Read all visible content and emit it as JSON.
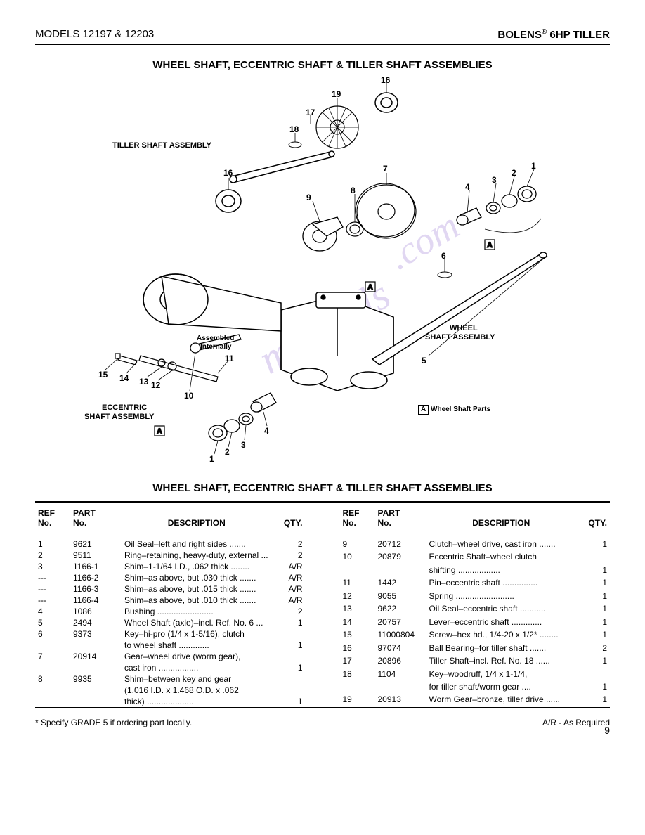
{
  "header": {
    "left": "MODELS 12197 & 12203",
    "brand": "BOLENS",
    "product": " 6HP TILLER"
  },
  "section_title": "WHEEL SHAFT, ECCENTRIC SHAFT & TILLER SHAFT ASSEMBLIES",
  "diagram_labels": {
    "tiller_shaft": "TILLER SHAFT ASSEMBLY",
    "wheel_shaft_1": "WHEEL",
    "wheel_shaft_2": "SHAFT ASSEMBLY",
    "eccentric_1": "ECCENTRIC",
    "eccentric_2": "SHAFT ASSEMBLY",
    "assembled_1": "Assembled",
    "assembled_2": "Internally",
    "legend_letter": "A",
    "legend_text": "Wheel Shaft Parts",
    "callouts": {
      "n1a": "1",
      "n2a": "2",
      "n3a": "3",
      "n4a": "4",
      "n1b": "1",
      "n2b": "2",
      "n3b": "3",
      "n4b": "4",
      "n5": "5",
      "n6": "6",
      "n7": "7",
      "n8": "8",
      "n9": "9",
      "n10": "10",
      "n11": "11",
      "n12": "12",
      "n13": "13",
      "n14": "14",
      "n15": "15",
      "n16a": "16",
      "n16b": "16",
      "n17": "17",
      "n18": "18",
      "n19": "19"
    }
  },
  "tables_title": "WHEEL SHAFT, ECCENTRIC SHAFT & TILLER SHAFT ASSEMBLIES",
  "table_headers": {
    "ref_1": "REF",
    "ref_2": "No.",
    "part_1": "PART",
    "part_2": "No.",
    "desc": "DESCRIPTION",
    "qty": "QTY."
  },
  "left_rows": [
    {
      "ref": "1",
      "part": "9621",
      "desc": "Oil Seal–left and right sides",
      "qty": "2"
    },
    {
      "ref": "2",
      "part": "9511",
      "desc": "Ring–retaining, heavy-duty, external",
      "qty": "2"
    },
    {
      "ref": "3",
      "part": "1166-1",
      "desc": "Shim–1-1/64 I.D., .062 thick",
      "qty": "A/R"
    },
    {
      "ref": "---",
      "part": "1166-2",
      "desc": "Shim–as above, but .030 thick",
      "qty": "A/R"
    },
    {
      "ref": "---",
      "part": "1166-3",
      "desc": "Shim–as above, but .015 thick",
      "qty": "A/R"
    },
    {
      "ref": "---",
      "part": "1166-4",
      "desc": "Shim–as above, but .010 thick",
      "qty": "A/R"
    },
    {
      "ref": "4",
      "part": "1086",
      "desc": "Bushing",
      "qty": "2"
    },
    {
      "ref": "5",
      "part": "2494",
      "desc": "Wheel Shaft (axle)–incl. Ref. No. 6",
      "qty": "1"
    },
    {
      "ref": "6",
      "part": "9373",
      "desc": "Key–hi-pro (1/4 x 1-5/16), clutch",
      "qty": ""
    },
    {
      "ref": "",
      "part": "",
      "desc": "       to wheel shaft",
      "qty": "1"
    },
    {
      "ref": "7",
      "part": "20914",
      "desc": "Gear–wheel drive (worm gear),",
      "qty": ""
    },
    {
      "ref": "",
      "part": "",
      "desc": "       cast iron",
      "qty": "1"
    },
    {
      "ref": "8",
      "part": "9935",
      "desc": "Shim–between key and gear",
      "qty": ""
    },
    {
      "ref": "",
      "part": "",
      "desc": "       (1.016 I.D. x 1.468 O.D. x .062",
      "qty": ""
    },
    {
      "ref": "",
      "part": "",
      "desc": "       thick)",
      "qty": "1"
    }
  ],
  "right_rows": [
    {
      "ref": "9",
      "part": "20712",
      "desc": "Clutch–wheel drive, cast iron",
      "qty": "1"
    },
    {
      "ref": "10",
      "part": "20879",
      "desc": "Eccentric Shaft–wheel clutch",
      "qty": ""
    },
    {
      "ref": "",
      "part": "",
      "desc": "       shifting",
      "qty": "1"
    },
    {
      "ref": "11",
      "part": "1442",
      "desc": "Pin–eccentric shaft",
      "qty": "1"
    },
    {
      "ref": "12",
      "part": "9055",
      "desc": "Spring",
      "qty": "1"
    },
    {
      "ref": "13",
      "part": "9622",
      "desc": "Oil Seal–eccentric shaft",
      "qty": "1"
    },
    {
      "ref": "14",
      "part": "20757",
      "desc": "Lever–eccentric shaft",
      "qty": "1"
    },
    {
      "ref": "15",
      "part": "11000804",
      "desc": "Screw–hex hd., 1/4-20 x 1/2*",
      "qty": "1"
    },
    {
      "ref": "16",
      "part": "97074",
      "desc": "Ball Bearing–for tiller shaft",
      "qty": "2"
    },
    {
      "ref": "17",
      "part": "20896",
      "desc": "Tiller Shaft–incl. Ref. No. 18",
      "qty": "1"
    },
    {
      "ref": "18",
      "part": "1104",
      "desc": "Key–woodruff, 1/4 x 1-1/4,",
      "qty": ""
    },
    {
      "ref": "",
      "part": "",
      "desc": "       for tiller shaft/worm gear",
      "qty": "1"
    },
    {
      "ref": "19",
      "part": "20913",
      "desc": "Worm Gear–bronze, tiller drive",
      "qty": "1"
    }
  ],
  "footer": {
    "left": "* Specify GRADE 5 if ordering part locally.",
    "right": "A/R - As Required"
  },
  "page_number": "9"
}
